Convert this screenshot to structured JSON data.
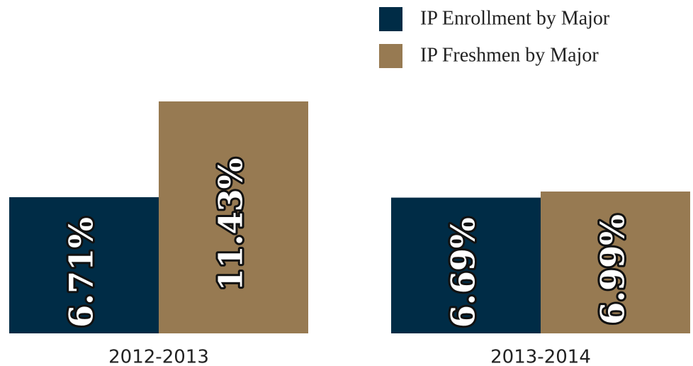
{
  "chart_data": {
    "type": "bar",
    "categories": [
      "2012-2013",
      "2013-2014"
    ],
    "series": [
      {
        "name": "IP Enrollment by Major",
        "color": "#002c46",
        "values": [
          6.71,
          6.69
        ],
        "value_labels": [
          "6.71%",
          "6.69%"
        ]
      },
      {
        "name": "IP Freshmen by Major",
        "color": "#977a52",
        "values": [
          11.43,
          6.99
        ],
        "value_labels": [
          "11.43%",
          "6.99%"
        ]
      }
    ],
    "legend": "top-right"
  }
}
